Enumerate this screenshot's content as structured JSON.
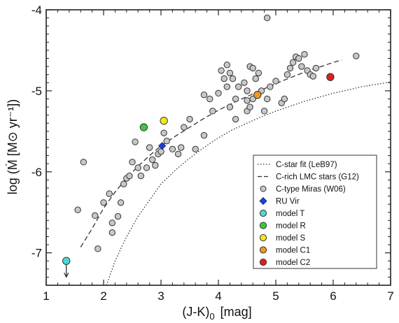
{
  "chart_data": {
    "type": "scatter",
    "xlabel": "(J-K)",
    "xlabel_subscript": "0",
    "xlabel_unit": "[mag]",
    "ylabel": "log (Ṁ [M⊙ yr⁻¹])",
    "xlim": [
      1,
      7
    ],
    "ylim": [
      -7.4,
      -4
    ],
    "x_ticks": [
      1,
      2,
      3,
      4,
      5,
      6,
      7
    ],
    "x_tick_labels": [
      "1",
      "2",
      "3",
      "4",
      "5",
      "6",
      "7"
    ],
    "y_ticks": [
      -7,
      -6,
      -5,
      -4
    ],
    "y_tick_labels": [
      "-7",
      "-6",
      "-5",
      "-4"
    ],
    "grid": false,
    "legend_position": "bottom-right",
    "series": [
      {
        "name": "C-star fit (LeB97)",
        "kind": "line",
        "style": "dotted",
        "color": "#333333",
        "x": [
          2.05,
          2.2,
          2.4,
          2.6,
          2.8,
          3.0,
          3.25,
          3.5,
          3.75,
          4.0,
          4.25,
          4.5,
          4.75,
          5.0,
          5.25,
          5.5,
          5.75,
          6.0,
          6.25,
          6.5,
          6.75,
          7.0
        ],
        "y": [
          -7.4,
          -7.1,
          -6.8,
          -6.55,
          -6.35,
          -6.15,
          -5.98,
          -5.83,
          -5.7,
          -5.58,
          -5.48,
          -5.4,
          -5.32,
          -5.25,
          -5.19,
          -5.13,
          -5.08,
          -5.03,
          -4.99,
          -4.95,
          -4.92,
          -4.89
        ]
      },
      {
        "name": "C-rich LMC stars (G12)",
        "kind": "line",
        "style": "dashed",
        "color": "#333333",
        "x": [
          1.6,
          1.8,
          2.0,
          2.2,
          2.4,
          2.6,
          2.8,
          3.0,
          3.25,
          3.5,
          3.75,
          4.0,
          4.25,
          4.5,
          4.75,
          5.0,
          5.25,
          5.5,
          5.75,
          6.0,
          6.15
        ],
        "y": [
          -6.93,
          -6.7,
          -6.45,
          -6.25,
          -6.08,
          -5.93,
          -5.8,
          -5.68,
          -5.56,
          -5.45,
          -5.34,
          -5.24,
          -5.15,
          -5.07,
          -4.99,
          -4.91,
          -4.84,
          -4.77,
          -4.71,
          -4.65,
          -4.62
        ]
      },
      {
        "name": "C-type Miras (W06)",
        "kind": "points",
        "color": "#c8c8c8",
        "stroke": "#333333",
        "x": [
          1.55,
          1.65,
          1.85,
          1.9,
          2.0,
          2.1,
          2.15,
          2.15,
          2.25,
          2.3,
          2.35,
          2.4,
          2.45,
          2.5,
          2.55,
          2.6,
          2.65,
          2.75,
          2.8,
          2.85,
          2.9,
          2.95,
          3.0,
          3.05,
          3.1,
          3.2,
          3.3,
          3.35,
          3.4,
          3.5,
          3.6,
          3.75,
          3.75,
          3.85,
          3.9,
          4.0,
          4.05,
          4.1,
          4.15,
          4.15,
          4.2,
          4.2,
          4.25,
          4.3,
          4.3,
          4.35,
          4.45,
          4.5,
          4.5,
          4.5,
          4.55,
          4.55,
          4.6,
          4.6,
          4.65,
          4.7,
          4.75,
          4.8,
          4.85,
          4.9,
          5.0,
          5.1,
          5.15,
          5.2,
          5.25,
          5.3,
          5.35,
          5.4,
          5.45,
          5.5,
          5.55,
          5.6,
          5.65,
          5.7,
          6.4,
          4.85
        ],
        "y": [
          -6.47,
          -5.88,
          -6.54,
          -6.95,
          -6.38,
          -6.27,
          -6.63,
          -6.75,
          -6.55,
          -6.38,
          -6.15,
          -6.08,
          -6.05,
          -5.88,
          -5.63,
          -5.95,
          -6.05,
          -5.95,
          -5.7,
          -5.85,
          -5.92,
          -5.78,
          -5.75,
          -5.52,
          -5.62,
          -5.72,
          -5.78,
          -5.7,
          -5.45,
          -5.35,
          -5.72,
          -5.55,
          -5.05,
          -5.1,
          -5.25,
          -5.03,
          -4.75,
          -4.85,
          -4.68,
          -4.95,
          -4.78,
          -5.2,
          -4.85,
          -5.1,
          -5.35,
          -4.95,
          -4.9,
          -5.0,
          -5.12,
          -5.25,
          -4.7,
          -5.2,
          -4.72,
          -5.1,
          -4.85,
          -4.78,
          -5.0,
          -5.25,
          -5.1,
          -4.95,
          -4.88,
          -5.15,
          -5.1,
          -4.8,
          -4.72,
          -4.65,
          -4.58,
          -4.6,
          -4.7,
          -4.55,
          -4.75,
          -4.8,
          -4.82,
          -4.72,
          -4.57,
          -4.1
        ]
      },
      {
        "name": "RU Vir",
        "kind": "marker",
        "marker": "diamond",
        "color": "#1f3fd8",
        "x": [
          3.02
        ],
        "y": [
          -5.68
        ]
      },
      {
        "name": "model T",
        "kind": "marker",
        "marker": "circle",
        "color": "#4fd8d8",
        "x": [
          1.35
        ],
        "y": [
          -7.1
        ],
        "upper_limit": true
      },
      {
        "name": "model R",
        "kind": "marker",
        "marker": "circle",
        "color": "#3cc83c",
        "x": [
          2.7
        ],
        "y": [
          -5.45
        ]
      },
      {
        "name": "model S",
        "kind": "marker",
        "marker": "circle",
        "color": "#f0e81e",
        "x": [
          3.05
        ],
        "y": [
          -5.37
        ]
      },
      {
        "name": "model C1",
        "kind": "marker",
        "marker": "circle",
        "color": "#ee9a1e",
        "x": [
          4.68
        ],
        "y": [
          -5.05
        ]
      },
      {
        "name": "model C2",
        "kind": "marker",
        "marker": "circle",
        "color": "#dd2020",
        "x": [
          5.95
        ],
        "y": [
          -4.83
        ]
      }
    ]
  }
}
